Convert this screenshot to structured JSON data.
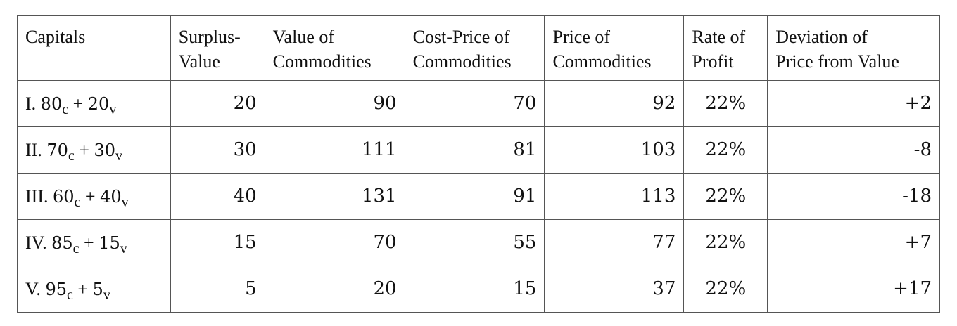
{
  "table": {
    "headers": [
      [
        "Capitals"
      ],
      [
        "Surplus-",
        "Value"
      ],
      [
        "Value of",
        "Commodities"
      ],
      [
        "Cost-Price of",
        "Commodities"
      ],
      [
        "Price of",
        "Commodities"
      ],
      [
        "Rate of",
        "Profit"
      ],
      [
        "Deviation of",
        "Price from Value"
      ]
    ],
    "rows": [
      {
        "capital": {
          "numeral": "I.",
          "constant": "80",
          "constant_sub": "c",
          "plus": "+",
          "variable": "20",
          "variable_sub": "v"
        },
        "surplus_value": "20",
        "value_of_commodities": "90",
        "cost_price": "70",
        "price": "92",
        "rate_of_profit": "22%",
        "deviation": "+2"
      },
      {
        "capital": {
          "numeral": "II.",
          "constant": "70",
          "constant_sub": "c",
          "plus": "+",
          "variable": "30",
          "variable_sub": "v"
        },
        "surplus_value": "30",
        "value_of_commodities": "111",
        "cost_price": "81",
        "price": "103",
        "rate_of_profit": "22%",
        "deviation": "-8"
      },
      {
        "capital": {
          "numeral": "III.",
          "constant": "60",
          "constant_sub": "c",
          "plus": "+",
          "variable": "40",
          "variable_sub": "v"
        },
        "surplus_value": "40",
        "value_of_commodities": "131",
        "cost_price": "91",
        "price": "113",
        "rate_of_profit": "22%",
        "deviation": "-18"
      },
      {
        "capital": {
          "numeral": "IV.",
          "constant": "85",
          "constant_sub": "c",
          "plus": "+",
          "variable": "15",
          "variable_sub": "v"
        },
        "surplus_value": "15",
        "value_of_commodities": "70",
        "cost_price": "55",
        "price": "77",
        "rate_of_profit": "22%",
        "deviation": "+7"
      },
      {
        "capital": {
          "numeral": "V.",
          "constant": "95",
          "constant_sub": "c",
          "plus": "+",
          "variable": "5",
          "variable_sub": "v"
        },
        "surplus_value": "5",
        "value_of_commodities": "20",
        "cost_price": "15",
        "price": "37",
        "rate_of_profit": "22%",
        "deviation": "+17"
      }
    ]
  }
}
